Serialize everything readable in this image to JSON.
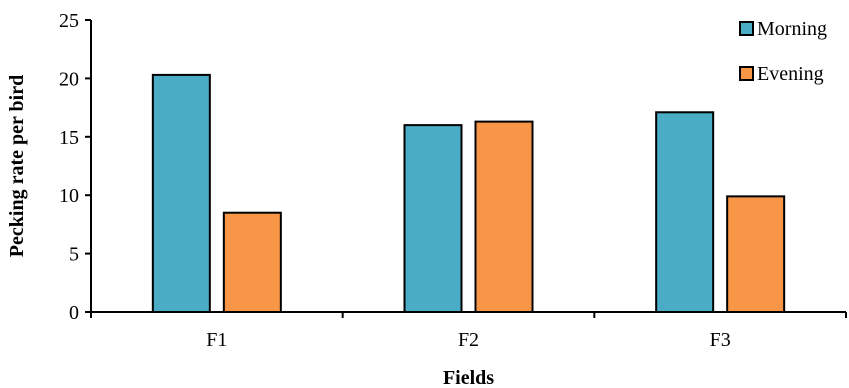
{
  "chart_data": {
    "type": "bar",
    "title": "",
    "xlabel": "Fields",
    "ylabel": "Pecking rate per bird",
    "categories": [
      "F1",
      "F2",
      "F3"
    ],
    "series": [
      {
        "name": "Morning",
        "values": [
          20.3,
          16.0,
          17.1
        ],
        "color": "#4bacc6"
      },
      {
        "name": "Evening",
        "values": [
          8.5,
          16.3,
          9.9
        ],
        "color": "#f79646"
      }
    ],
    "ylim": [
      0,
      25
    ],
    "yticks": [
      0,
      5,
      10,
      15,
      20,
      25
    ],
    "grid": false,
    "legend_position": "top-right"
  }
}
